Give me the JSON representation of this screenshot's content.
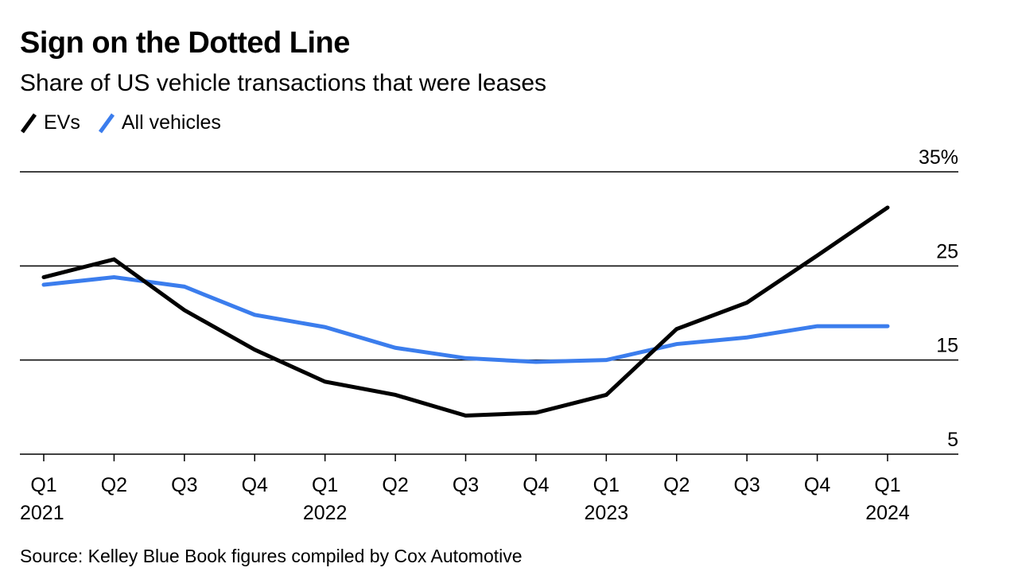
{
  "title": "Sign on the Dotted Line",
  "subtitle": "Share of US vehicle transactions that were leases",
  "source": "Source: Kelley Blue Book figures compiled by Cox Automotive",
  "legend": [
    {
      "label": "EVs",
      "color": "#000000"
    },
    {
      "label": "All vehicles",
      "color": "#3b7ded"
    }
  ],
  "chart_data": {
    "type": "line",
    "x": [
      "Q1 2021",
      "Q2 2021",
      "Q3 2021",
      "Q4 2021",
      "Q1 2022",
      "Q2 2022",
      "Q3 2022",
      "Q4 2022",
      "Q1 2023",
      "Q2 2023",
      "Q3 2023",
      "Q4 2023",
      "Q1 2024"
    ],
    "x_tick_labels": [
      {
        "quarter": "Q1",
        "year": "2021"
      },
      {
        "quarter": "Q2",
        "year": ""
      },
      {
        "quarter": "Q3",
        "year": ""
      },
      {
        "quarter": "Q4",
        "year": ""
      },
      {
        "quarter": "Q1",
        "year": "2022"
      },
      {
        "quarter": "Q2",
        "year": ""
      },
      {
        "quarter": "Q3",
        "year": ""
      },
      {
        "quarter": "Q4",
        "year": ""
      },
      {
        "quarter": "Q1",
        "year": "2023"
      },
      {
        "quarter": "Q2",
        "year": ""
      },
      {
        "quarter": "Q3",
        "year": ""
      },
      {
        "quarter": "Q4",
        "year": ""
      },
      {
        "quarter": "Q1",
        "year": "2024"
      }
    ],
    "series": [
      {
        "name": "EVs",
        "color": "#000000",
        "values": [
          23.8,
          25.7,
          20.3,
          16.1,
          12.7,
          11.3,
          9.1,
          9.4,
          11.3,
          18.3,
          21.1,
          26.1,
          31.2
        ]
      },
      {
        "name": "All vehicles",
        "color": "#3b7ded",
        "values": [
          23.0,
          23.8,
          22.8,
          19.8,
          18.5,
          16.3,
          15.2,
          14.8,
          15.0,
          16.7,
          17.4,
          18.6,
          18.6
        ]
      }
    ],
    "y_ticks": [
      {
        "value": 35,
        "label": "35%"
      },
      {
        "value": 25,
        "label": "25"
      },
      {
        "value": 15,
        "label": "15"
      },
      {
        "value": 5,
        "label": "5"
      }
    ],
    "ylim": [
      5,
      35
    ],
    "grid": true
  }
}
